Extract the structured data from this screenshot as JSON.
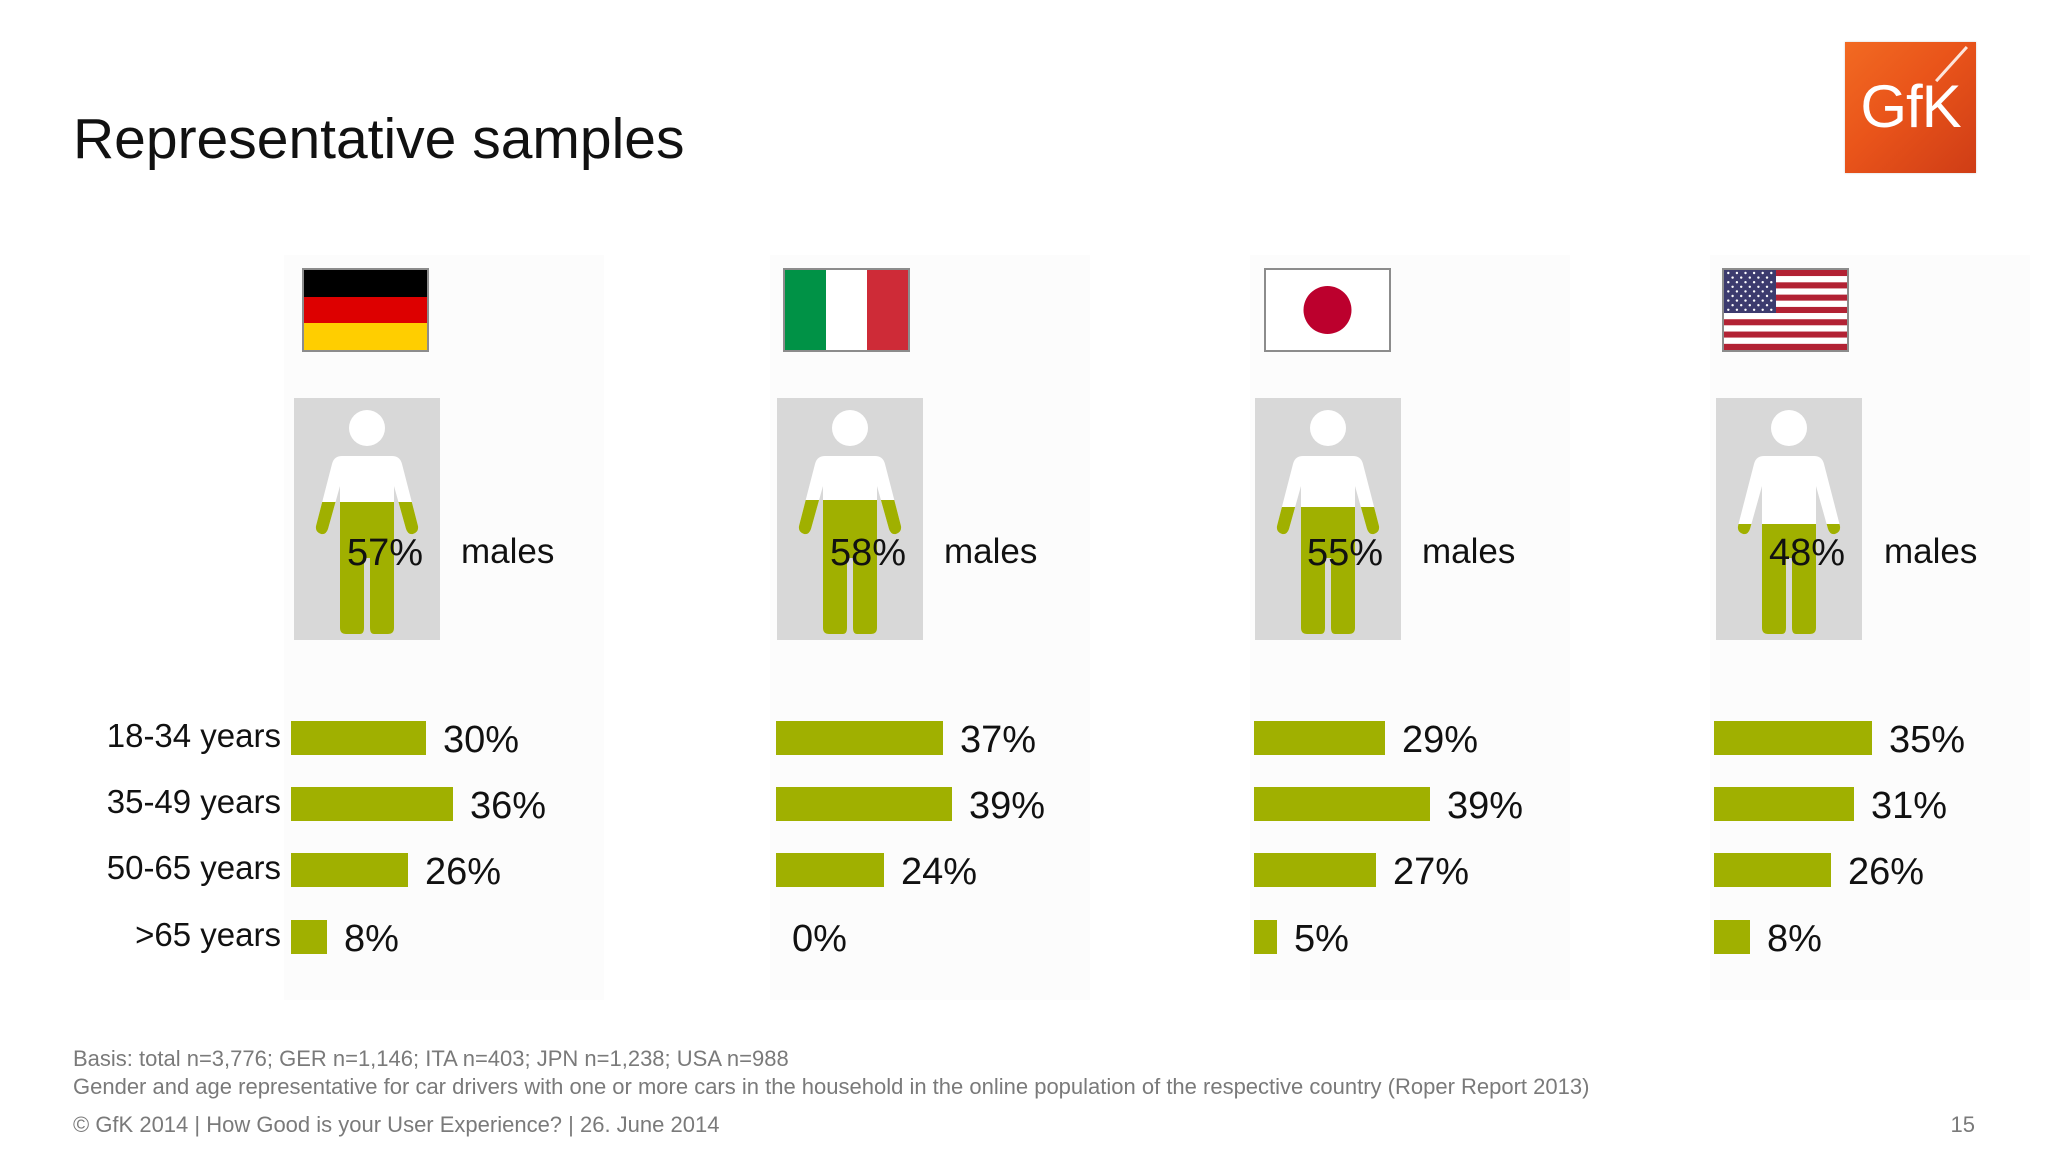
{
  "title": "Representative samples",
  "logo_text": "GfK",
  "males_word": "males",
  "chart_data": {
    "type": "bar",
    "title": "",
    "categories": [
      "18-34 years",
      "35-49 years",
      "50-65 years",
      ">65 years"
    ],
    "xlim": [
      0,
      100
    ],
    "countries": [
      {
        "flag": "germany-flag",
        "males_pct": 57,
        "males_label": "57%",
        "values": [
          30,
          36,
          26,
          8
        ],
        "value_labels": [
          "30%",
          "36%",
          "26%",
          "8%"
        ]
      },
      {
        "flag": "italy-flag",
        "males_pct": 58,
        "males_label": "58%",
        "values": [
          37,
          39,
          24,
          0
        ],
        "value_labels": [
          "37%",
          "39%",
          "24%",
          "0%"
        ]
      },
      {
        "flag": "japan-flag",
        "males_pct": 55,
        "males_label": "55%",
        "values": [
          29,
          39,
          27,
          5
        ],
        "value_labels": [
          "29%",
          "39%",
          "27%",
          "5%"
        ]
      },
      {
        "flag": "usa-flag",
        "males_pct": 48,
        "males_label": "48%",
        "values": [
          35,
          31,
          26,
          8
        ],
        "value_labels": [
          "35%",
          "31%",
          "26%",
          "8%"
        ]
      }
    ],
    "colors": {
      "bar": "#a0b000",
      "figure_fill": "#a0b000",
      "figure_empty": "#ffffff",
      "figure_bg": "#d8d8d8"
    }
  },
  "footnotes": {
    "basis": "Basis: total n=3,776; GER n=1,146; ITA n=403; JPN n=1,238; USA n=988",
    "note": "Gender and age representative for car drivers with one or more cars in the household in the online population of the respective country (Roper Report 2013)"
  },
  "footer": {
    "text": "© GfK 2014 | How Good is your User Experience? | 26. June 2014",
    "page_number": "15"
  }
}
